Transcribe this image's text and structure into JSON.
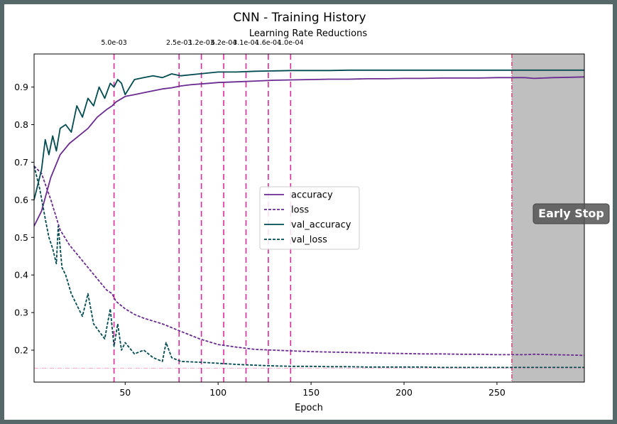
{
  "chart_data": {
    "type": "line",
    "title": "CNN - Training History",
    "subtitle": "Learning Rate Reductions",
    "xlabel": "Epoch",
    "ylabel": "",
    "xlim": [
      1,
      297
    ],
    "ylim": [
      0.115,
      0.988
    ],
    "xticks": [
      50,
      100,
      150,
      200,
      250
    ],
    "yticks": [
      0.2,
      0.3,
      0.4,
      0.5,
      0.6,
      0.7,
      0.8,
      0.9
    ],
    "grid": false,
    "legend_position": "center",
    "legend": [
      "accuracy",
      "loss",
      "val_accuracy",
      "val_loss"
    ],
    "series_styles": [
      {
        "name": "accuracy",
        "color": "#6a2c91",
        "dash": "solid"
      },
      {
        "name": "loss",
        "color": "#6a2c91",
        "dash": "dashed"
      },
      {
        "name": "val_accuracy",
        "color": "#004b50",
        "dash": "solid"
      },
      {
        "name": "val_loss",
        "color": "#004b50",
        "dash": "dashed"
      }
    ],
    "series": [
      {
        "name": "accuracy",
        "x": [
          1,
          5,
          10,
          15,
          20,
          25,
          30,
          35,
          40,
          43,
          45,
          50,
          55,
          60,
          65,
          70,
          75,
          80,
          85,
          90,
          95,
          100,
          110,
          120,
          130,
          140,
          150,
          160,
          170,
          180,
          190,
          200,
          210,
          220,
          230,
          240,
          250,
          258,
          265,
          270,
          280,
          290,
          297
        ],
        "y": [
          0.53,
          0.57,
          0.66,
          0.72,
          0.75,
          0.77,
          0.79,
          0.82,
          0.84,
          0.85,
          0.86,
          0.875,
          0.88,
          0.885,
          0.89,
          0.895,
          0.898,
          0.903,
          0.906,
          0.908,
          0.91,
          0.912,
          0.914,
          0.916,
          0.918,
          0.919,
          0.92,
          0.921,
          0.921,
          0.922,
          0.922,
          0.923,
          0.923,
          0.924,
          0.924,
          0.924,
          0.925,
          0.925,
          0.925,
          0.923,
          0.925,
          0.926,
          0.927
        ]
      },
      {
        "name": "loss",
        "x": [
          1,
          5,
          10,
          15,
          20,
          25,
          30,
          35,
          40,
          43,
          45,
          50,
          55,
          60,
          70,
          80,
          90,
          100,
          110,
          120,
          130,
          140,
          150,
          160,
          170,
          180,
          190,
          200,
          210,
          220,
          230,
          240,
          250,
          258,
          265,
          270,
          280,
          290,
          297
        ],
        "y": [
          0.69,
          0.67,
          0.6,
          0.52,
          0.48,
          0.45,
          0.42,
          0.39,
          0.36,
          0.35,
          0.33,
          0.31,
          0.295,
          0.285,
          0.27,
          0.25,
          0.23,
          0.215,
          0.208,
          0.202,
          0.2,
          0.198,
          0.196,
          0.195,
          0.194,
          0.193,
          0.192,
          0.191,
          0.19,
          0.19,
          0.189,
          0.189,
          0.188,
          0.188,
          0.188,
          0.189,
          0.188,
          0.187,
          0.186
        ]
      },
      {
        "name": "val_accuracy",
        "x": [
          1,
          5,
          7,
          9,
          11,
          13,
          15,
          18,
          21,
          24,
          27,
          30,
          33,
          36,
          39,
          42,
          44,
          46,
          48,
          50,
          55,
          60,
          65,
          70,
          75,
          80,
          90,
          100,
          110,
          120,
          130,
          140,
          150,
          160,
          170,
          180,
          190,
          200,
          210,
          220,
          230,
          240,
          250,
          258,
          265,
          270,
          280,
          290,
          297
        ],
        "y": [
          0.6,
          0.68,
          0.76,
          0.72,
          0.77,
          0.73,
          0.79,
          0.8,
          0.78,
          0.85,
          0.82,
          0.87,
          0.85,
          0.9,
          0.87,
          0.91,
          0.9,
          0.92,
          0.91,
          0.88,
          0.92,
          0.925,
          0.93,
          0.925,
          0.935,
          0.93,
          0.935,
          0.94,
          0.94,
          0.942,
          0.943,
          0.944,
          0.944,
          0.944,
          0.945,
          0.945,
          0.945,
          0.945,
          0.945,
          0.945,
          0.945,
          0.945,
          0.945,
          0.945,
          0.945,
          0.945,
          0.945,
          0.945,
          0.945
        ]
      },
      {
        "name": "val_loss",
        "x": [
          1,
          4,
          7,
          9,
          11,
          13,
          14,
          16,
          18,
          21,
          24,
          27,
          30,
          33,
          36,
          39,
          42,
          44,
          46,
          48,
          50,
          55,
          60,
          65,
          70,
          72,
          75,
          80,
          90,
          100,
          110,
          120,
          130,
          140,
          150,
          160,
          170,
          180,
          190,
          200,
          210,
          220,
          230,
          240,
          250,
          258,
          265,
          270,
          280,
          290,
          297
        ],
        "y": [
          0.69,
          0.63,
          0.55,
          0.5,
          0.47,
          0.43,
          0.53,
          0.42,
          0.4,
          0.35,
          0.32,
          0.29,
          0.35,
          0.27,
          0.25,
          0.23,
          0.31,
          0.21,
          0.27,
          0.2,
          0.22,
          0.19,
          0.2,
          0.18,
          0.17,
          0.22,
          0.18,
          0.17,
          0.168,
          0.165,
          0.162,
          0.16,
          0.158,
          0.157,
          0.157,
          0.156,
          0.156,
          0.155,
          0.155,
          0.155,
          0.155,
          0.154,
          0.154,
          0.154,
          0.154,
          0.154,
          0.154,
          0.154,
          0.154,
          0.154,
          0.154
        ]
      }
    ],
    "lr_reductions": [
      {
        "epoch": 44,
        "label": "5.0e-03"
      },
      {
        "epoch": 79,
        "label": "2.5e-03"
      },
      {
        "epoch": 91,
        "label": "1.2e-03"
      },
      {
        "epoch": 103,
        "label": "6.2e-04"
      },
      {
        "epoch": 115,
        "label": "3.1e-04"
      },
      {
        "epoch": 127,
        "label": "1.6e-04"
      },
      {
        "epoch": 139,
        "label": "1.0e-04"
      }
    ],
    "lr_line_color": "#e0289b",
    "early_stop": {
      "epoch": 258,
      "label": "Early Stop",
      "shade_color": "#bfbfbf",
      "line_color": "#d9296a"
    },
    "best_val_loss": 0.152,
    "best_val_loss_color": "#f4a6c6"
  }
}
